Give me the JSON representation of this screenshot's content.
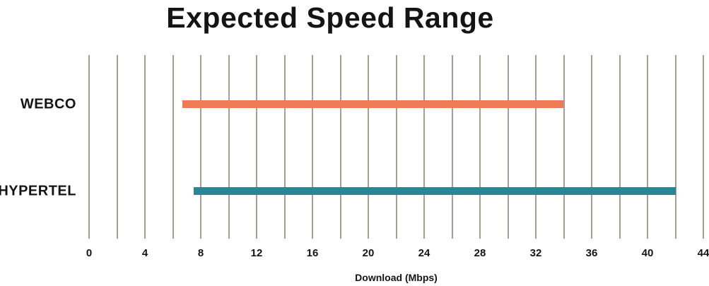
{
  "chart_data": {
    "type": "bar",
    "subtype": "horizontal-range-bar",
    "title": "Expected Speed Range",
    "xlabel": "Download (Mbps)",
    "xlim": [
      0,
      44
    ],
    "gridline_step": 2,
    "tick_label_step": 4,
    "tick_labels": [
      "0",
      "4",
      "8",
      "12",
      "16",
      "20",
      "24",
      "28",
      "32",
      "36",
      "40",
      "44"
    ],
    "grid": true,
    "legend": "none",
    "categories": [
      "WEBCO",
      "HYPERTEL"
    ],
    "series": [
      {
        "name": "WEBCO",
        "range_mbps": [
          6.7,
          34
        ],
        "color": "#EF7A56"
      },
      {
        "name": "HYPERTEL",
        "range_mbps": [
          7.5,
          42
        ],
        "color": "#2A8694"
      }
    ],
    "colors": {
      "gridline": "#A3A09A",
      "text": "#141414",
      "background": "#FFFFFF"
    }
  }
}
